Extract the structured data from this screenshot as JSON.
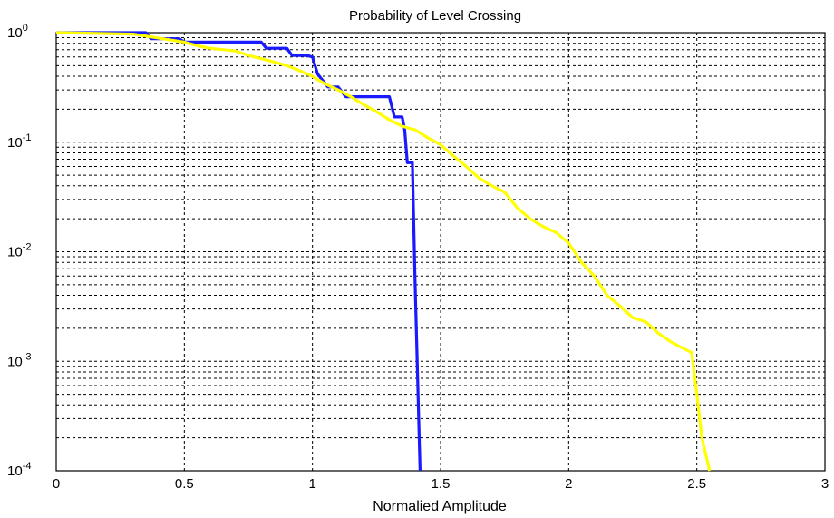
{
  "chart_data": {
    "type": "line",
    "title": "Probability of Level Crossing",
    "xlabel": "Normalied Amplitude",
    "ylabel": "",
    "xlim": [
      0,
      3
    ],
    "ylim": [
      0.0001,
      1
    ],
    "yscale": "log",
    "grid": true,
    "x_ticks": [
      {
        "value": 0,
        "label": "0"
      },
      {
        "value": 0.5,
        "label": "0.5"
      },
      {
        "value": 1,
        "label": "1"
      },
      {
        "value": 1.5,
        "label": "1.5"
      },
      {
        "value": 2,
        "label": "2"
      },
      {
        "value": 2.5,
        "label": "2.5"
      },
      {
        "value": 3,
        "label": "3"
      }
    ],
    "y_ticks": [
      {
        "value": 1,
        "base": "10",
        "exp": "0"
      },
      {
        "value": 0.1,
        "base": "10",
        "exp": "-1"
      },
      {
        "value": 0.01,
        "base": "10",
        "exp": "-2"
      },
      {
        "value": 0.001,
        "base": "10",
        "exp": "-3"
      },
      {
        "value": 0.0001,
        "base": "10",
        "exp": "-4"
      }
    ],
    "series": [
      {
        "color": "#1a1aff",
        "x": [
          0,
          0.35,
          0.37,
          0.48,
          0.5,
          0.7,
          0.75,
          0.8,
          0.82,
          0.9,
          0.92,
          0.98,
          1.0,
          1.02,
          1.06,
          1.1,
          1.13,
          1.15,
          1.3,
          1.32,
          1.35,
          1.36,
          1.37,
          1.39,
          1.4,
          1.42
        ],
        "y": [
          1.0,
          1.0,
          0.88,
          0.88,
          0.82,
          0.82,
          0.82,
          0.82,
          0.72,
          0.72,
          0.62,
          0.62,
          0.6,
          0.42,
          0.32,
          0.32,
          0.26,
          0.26,
          0.26,
          0.17,
          0.17,
          0.13,
          0.065,
          0.065,
          0.006,
          0.0001
        ]
      },
      {
        "color": "#ffff00",
        "x": [
          0,
          0.3,
          0.5,
          0.55,
          0.6,
          0.7,
          0.75,
          0.8,
          0.85,
          0.9,
          0.95,
          1.0,
          1.05,
          1.1,
          1.15,
          1.2,
          1.25,
          1.3,
          1.35,
          1.4,
          1.45,
          1.5,
          1.55,
          1.6,
          1.65,
          1.7,
          1.75,
          1.8,
          1.85,
          1.9,
          1.95,
          2.0,
          2.05,
          2.1,
          2.15,
          2.2,
          2.25,
          2.3,
          2.35,
          2.4,
          2.45,
          2.48,
          2.5,
          2.52,
          2.55
        ],
        "y": [
          1.0,
          0.97,
          0.82,
          0.76,
          0.72,
          0.68,
          0.62,
          0.58,
          0.54,
          0.5,
          0.45,
          0.4,
          0.34,
          0.3,
          0.26,
          0.22,
          0.19,
          0.16,
          0.14,
          0.13,
          0.11,
          0.095,
          0.075,
          0.06,
          0.047,
          0.04,
          0.035,
          0.025,
          0.02,
          0.017,
          0.015,
          0.012,
          0.008,
          0.006,
          0.004,
          0.0032,
          0.0025,
          0.0023,
          0.0018,
          0.0015,
          0.0013,
          0.0012,
          0.0005,
          0.0002,
          0.0001
        ]
      }
    ]
  }
}
